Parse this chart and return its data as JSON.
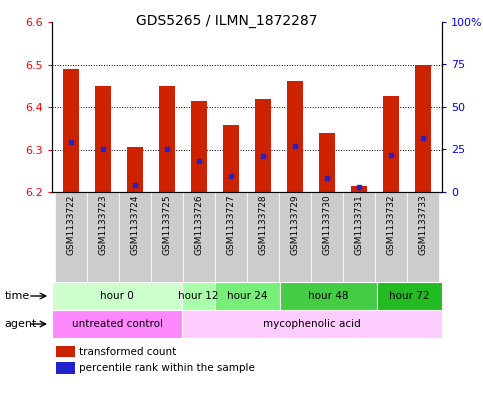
{
  "title": "GDS5265 / ILMN_1872287",
  "samples": [
    "GSM1133722",
    "GSM1133723",
    "GSM1133724",
    "GSM1133725",
    "GSM1133726",
    "GSM1133727",
    "GSM1133728",
    "GSM1133729",
    "GSM1133730",
    "GSM1133731",
    "GSM1133732",
    "GSM1133733"
  ],
  "bar_tops": [
    6.49,
    6.45,
    6.305,
    6.45,
    6.415,
    6.358,
    6.42,
    6.462,
    6.34,
    6.215,
    6.425,
    6.5
  ],
  "bar_base": 6.2,
  "percentile_values": [
    6.318,
    6.302,
    6.216,
    6.302,
    6.274,
    6.238,
    6.284,
    6.308,
    6.232,
    6.212,
    6.288,
    6.328
  ],
  "bar_color": "#cc2200",
  "percentile_color": "#2222cc",
  "ylim_left": [
    6.2,
    6.6
  ],
  "ylim_right": [
    0,
    100
  ],
  "hlines": [
    6.3,
    6.4,
    6.5
  ],
  "time_groups": [
    {
      "label": "hour 0",
      "start": 0,
      "end": 4,
      "color": "#ccffcc"
    },
    {
      "label": "hour 12",
      "start": 4,
      "end": 5,
      "color": "#aaffaa"
    },
    {
      "label": "hour 24",
      "start": 5,
      "end": 7,
      "color": "#77ee77"
    },
    {
      "label": "hour 48",
      "start": 7,
      "end": 10,
      "color": "#44cc44"
    },
    {
      "label": "hour 72",
      "start": 10,
      "end": 12,
      "color": "#22bb22"
    }
  ],
  "agent_groups": [
    {
      "label": "untreated control",
      "start": 0,
      "end": 4,
      "color": "#ff88ff"
    },
    {
      "label": "mycophenolic acid",
      "start": 4,
      "end": 12,
      "color": "#ffccff"
    }
  ],
  "sample_bg_color": "#cccccc",
  "bar_width": 0.5
}
